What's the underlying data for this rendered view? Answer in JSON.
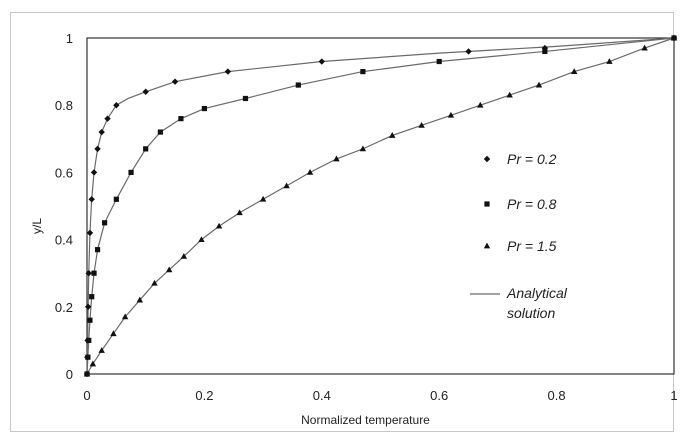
{
  "chart_data": {
    "type": "scatter",
    "xlabel": "Normalized temperature",
    "ylabel": "y/L",
    "xlim": [
      0,
      1
    ],
    "ylim": [
      0,
      1
    ],
    "xticks": [
      "0",
      "0.2",
      "0.4",
      "0.6",
      "0.8",
      "1"
    ],
    "yticks": [
      "0",
      "0.2",
      "0.4",
      "0.6",
      "0.8",
      "1"
    ],
    "grid": false,
    "legend_position": "right",
    "series": [
      {
        "name": "Pr = 0.2",
        "marker": "diamond",
        "x": [
          0.0,
          0.0005,
          0.001,
          0.002,
          0.003,
          0.005,
          0.008,
          0.012,
          0.018,
          0.025,
          0.035,
          0.05,
          0.1,
          0.15,
          0.24,
          0.4,
          0.65,
          0.78,
          1.0
        ],
        "y": [
          0.0,
          0.05,
          0.1,
          0.2,
          0.3,
          0.42,
          0.52,
          0.6,
          0.67,
          0.72,
          0.76,
          0.8,
          0.84,
          0.87,
          0.9,
          0.93,
          0.96,
          0.97,
          1.0
        ]
      },
      {
        "name": "Pr = 0.8",
        "marker": "square",
        "x": [
          0.0,
          0.0015,
          0.003,
          0.005,
          0.008,
          0.012,
          0.018,
          0.03,
          0.05,
          0.075,
          0.1,
          0.125,
          0.16,
          0.2,
          0.27,
          0.36,
          0.47,
          0.6,
          0.78,
          1.0
        ],
        "y": [
          0.0,
          0.05,
          0.1,
          0.16,
          0.23,
          0.3,
          0.37,
          0.45,
          0.52,
          0.6,
          0.67,
          0.72,
          0.76,
          0.79,
          0.82,
          0.86,
          0.9,
          0.93,
          0.96,
          1.0
        ]
      },
      {
        "name": "Pr = 1.5",
        "marker": "triangle",
        "x": [
          0.0,
          0.01,
          0.025,
          0.045,
          0.065,
          0.09,
          0.115,
          0.14,
          0.165,
          0.195,
          0.225,
          0.26,
          0.3,
          0.34,
          0.38,
          0.425,
          0.47,
          0.52,
          0.57,
          0.62,
          0.67,
          0.72,
          0.77,
          0.83,
          0.89,
          0.95,
          1.0
        ],
        "y": [
          0.0,
          0.03,
          0.07,
          0.12,
          0.17,
          0.22,
          0.27,
          0.31,
          0.35,
          0.4,
          0.44,
          0.48,
          0.52,
          0.56,
          0.6,
          0.64,
          0.67,
          0.71,
          0.74,
          0.77,
          0.8,
          0.83,
          0.86,
          0.9,
          0.93,
          0.97,
          1.0
        ]
      },
      {
        "name": "Analytical solution",
        "marker": "line",
        "curves": [
          {
            "x": [
              0,
              0.0005,
              0.001,
              0.002,
              0.003,
              0.005,
              0.008,
              0.012,
              0.018,
              0.025,
              0.035,
              0.05,
              0.07,
              0.1,
              0.15,
              0.24,
              0.4,
              0.6,
              0.8,
              1.0
            ],
            "y": [
              0,
              0.05,
              0.1,
              0.2,
              0.3,
              0.42,
              0.52,
              0.6,
              0.67,
              0.72,
              0.76,
              0.8,
              0.82,
              0.84,
              0.87,
              0.9,
              0.93,
              0.955,
              0.975,
              1.0
            ]
          },
          {
            "x": [
              0,
              0.0015,
              0.003,
              0.005,
              0.008,
              0.012,
              0.018,
              0.03,
              0.05,
              0.075,
              0.1,
              0.125,
              0.16,
              0.2,
              0.27,
              0.36,
              0.47,
              0.6,
              0.78,
              1.0
            ],
            "y": [
              0,
              0.05,
              0.1,
              0.16,
              0.23,
              0.3,
              0.37,
              0.45,
              0.52,
              0.6,
              0.67,
              0.72,
              0.76,
              0.79,
              0.82,
              0.86,
              0.9,
              0.93,
              0.96,
              1.0
            ]
          },
          {
            "x": [
              0,
              0.01,
              0.025,
              0.045,
              0.065,
              0.09,
              0.115,
              0.14,
              0.165,
              0.195,
              0.225,
              0.26,
              0.3,
              0.34,
              0.38,
              0.425,
              0.47,
              0.52,
              0.57,
              0.62,
              0.67,
              0.72,
              0.77,
              0.83,
              0.89,
              0.95,
              1.0
            ],
            "y": [
              0,
              0.03,
              0.07,
              0.12,
              0.17,
              0.22,
              0.27,
              0.31,
              0.35,
              0.4,
              0.44,
              0.48,
              0.52,
              0.56,
              0.6,
              0.64,
              0.67,
              0.71,
              0.74,
              0.77,
              0.8,
              0.83,
              0.86,
              0.9,
              0.93,
              0.97,
              1.0
            ]
          }
        ]
      }
    ],
    "legend": {
      "pr02": "Pr = 0.2",
      "pr08": "Pr = 0.8",
      "pr15": "Pr = 1.5",
      "analytical_line1": "Analytical",
      "analytical_line2": "solution"
    },
    "colors": {
      "marker": "#111111",
      "line": "#6a6a6a",
      "axis": "#333333"
    }
  }
}
